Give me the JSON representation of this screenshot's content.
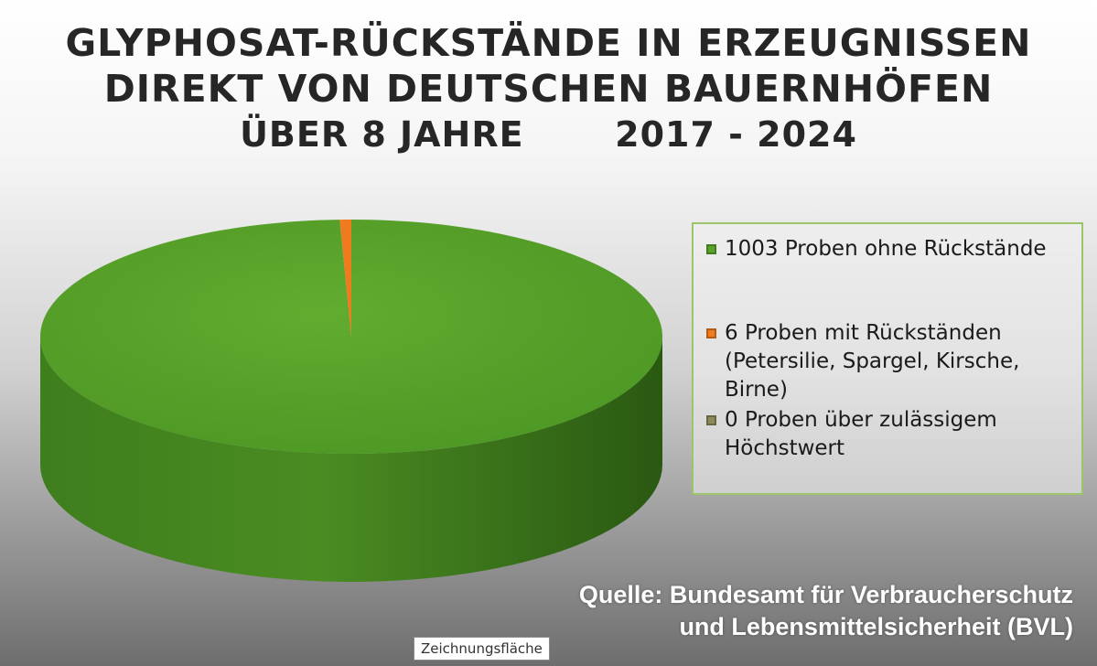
{
  "chart_data": {
    "type": "pie",
    "title_lines": [
      "GLYPHOSAT-RÜCKSTÄNDE IN ERZEUGNISSEN",
      "DIREKT VON DEUTSCHEN BAUERNHÖFEN",
      "ÜBER 8 JAHRE       2017 - 2024"
    ],
    "three_d": true,
    "legend_placement": "right",
    "slices": [
      {
        "label": "1003 Proben ohne Rückstände",
        "value": 1003,
        "color": "#5aa32a"
      },
      {
        "label": "6 Proben mit Rückständen\n(Petersilie, Spargel, Kirsche,\nBirne)",
        "value": 6,
        "color": "#f07a1e"
      },
      {
        "label": "0 Proben über zulässigem\nHöchstwert",
        "value": 0,
        "color": "#8b8a5a"
      }
    ]
  },
  "source": {
    "line1": "Quelle: Bundesamt für Verbraucherschutz",
    "line2": "und Lebensmittelsicherheit (BVL)"
  },
  "tooltip": "Zeichnungsfläche"
}
